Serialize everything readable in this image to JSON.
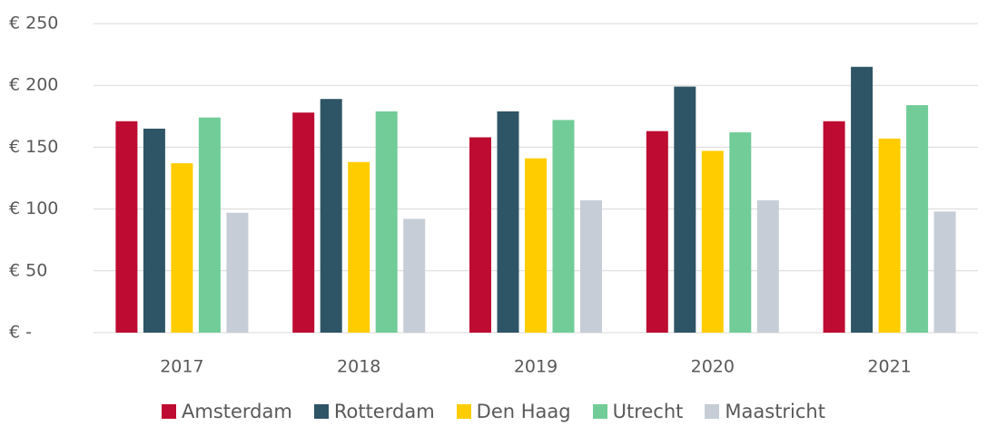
{
  "chart_data": {
    "type": "bar",
    "categories": [
      "2017",
      "2018",
      "2019",
      "2020",
      "2021"
    ],
    "series": [
      {
        "name": "Amsterdam",
        "color": "#be0b31",
        "values": [
          171,
          178,
          158,
          163,
          171
        ]
      },
      {
        "name": "Rotterdam",
        "color": "#2e5566",
        "values": [
          165,
          189,
          179,
          199,
          215
        ]
      },
      {
        "name": "Den Haag",
        "color": "#ffcc00",
        "values": [
          137,
          138,
          141,
          147,
          157
        ]
      },
      {
        "name": "Utrecht",
        "color": "#71cc98",
        "values": [
          174,
          179,
          172,
          162,
          184
        ]
      },
      {
        "name": "Maastricht",
        "color": "#c6cdd6",
        "values": [
          97,
          92,
          107,
          107,
          98
        ]
      }
    ],
    "ylim": [
      0,
      250
    ],
    "yticks": [
      {
        "value": 0,
        "label": "€ -"
      },
      {
        "value": 50,
        "label": "€ 50"
      },
      {
        "value": 100,
        "label": "€ 100"
      },
      {
        "value": 150,
        "label": "€ 150"
      },
      {
        "value": 200,
        "label": "€ 200"
      },
      {
        "value": 250,
        "label": "€ 250"
      }
    ],
    "grid": true,
    "legend": "bottom"
  }
}
